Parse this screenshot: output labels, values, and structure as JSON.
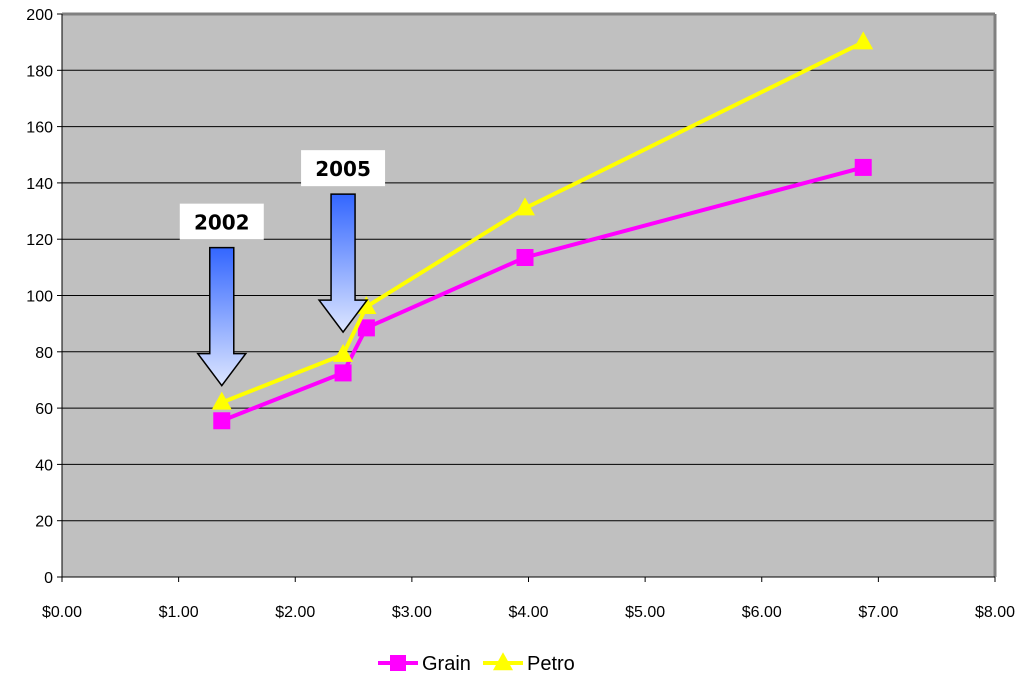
{
  "chart_data": {
    "type": "line",
    "title": "",
    "xlabel": "",
    "ylabel": "",
    "xlim": [
      0,
      8
    ],
    "ylim": [
      0,
      200
    ],
    "x_ticks": [
      0,
      1,
      2,
      3,
      4,
      5,
      6,
      7,
      8
    ],
    "x_tick_labels": [
      "$0.00",
      "$1.00",
      "$2.00",
      "$3.00",
      "$4.00",
      "$5.00",
      "$6.00",
      "$7.00",
      "$8.00"
    ],
    "y_ticks": [
      0,
      20,
      40,
      60,
      80,
      100,
      120,
      140,
      160,
      180,
      200
    ],
    "y_tick_labels": [
      "0",
      "20",
      "40",
      "60",
      "80",
      "100",
      "120",
      "140",
      "160",
      "180",
      "200"
    ],
    "grid": {
      "horizontal": true,
      "vertical": false
    },
    "legend": {
      "position": "bottom"
    },
    "series": [
      {
        "name": "Grain",
        "color": "#ff00ff",
        "marker": "square",
        "points": [
          [
            1.37,
            55.5
          ],
          [
            2.41,
            72.5
          ],
          [
            2.61,
            88.5
          ],
          [
            3.97,
            113.5
          ],
          [
            6.87,
            145.5
          ]
        ]
      },
      {
        "name": "Petro",
        "color": "#ffff00",
        "marker": "triangle",
        "points": [
          [
            1.37,
            62
          ],
          [
            2.41,
            79
          ],
          [
            2.61,
            96
          ],
          [
            3.97,
            131
          ],
          [
            6.87,
            190
          ]
        ]
      }
    ],
    "annotations": [
      {
        "text": "2002",
        "x": 1.37,
        "arrow_top_y": 117,
        "arrow_tip_y": 68
      },
      {
        "text": "2005",
        "x": 2.41,
        "arrow_top_y": 136,
        "arrow_tip_y": 87
      }
    ]
  },
  "colors": {
    "plot_background": "#c0c0c0",
    "plot_border": "#808080",
    "gridline": "#000000",
    "arrow_top": "#3366ff",
    "arrow_bottom": "#dde6ff"
  }
}
